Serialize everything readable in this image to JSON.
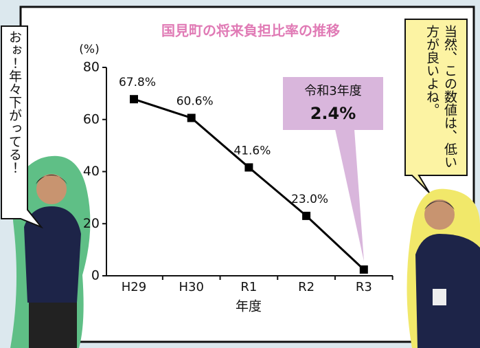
{
  "chart_data": {
    "type": "line",
    "title": "国見町の将来負担比率の推移",
    "y_label": "(%)",
    "x_label": "年度",
    "categories": [
      "H29",
      "H30",
      "R1",
      "R2",
      "R3"
    ],
    "values": [
      67.8,
      60.6,
      41.6,
      23.0,
      2.4
    ],
    "value_labels": [
      "67.8%",
      "60.6%",
      "41.6%",
      "23.0%",
      "2.4%"
    ],
    "annotation": "令和3年度",
    "color": "#000000",
    "ylim": [
      0,
      80
    ],
    "yticks": [
      0,
      20,
      40,
      60,
      80
    ],
    "grid": false
  },
  "speech_bubbles": [
    "おぉ！年々下がってる！",
    "当然、この数値は、低い方が良いよね。"
  ]
}
